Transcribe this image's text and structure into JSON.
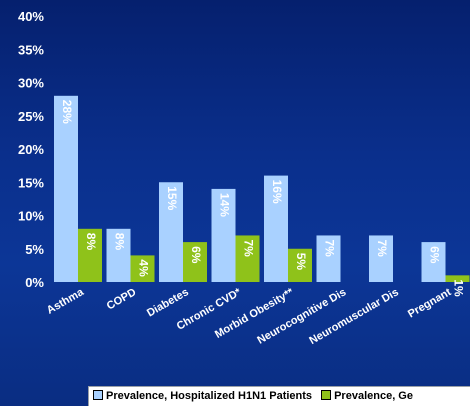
{
  "colors": {
    "series1": "#a9d1ff",
    "series2": "#8fc21a",
    "axis_text": "#ffffff",
    "category_text": "#ffffff"
  },
  "chart_data": {
    "type": "bar",
    "title": "",
    "xlabel": "",
    "ylabel": "",
    "ylim": [
      0,
      40
    ],
    "y_ticks": [
      "0%",
      "5%",
      "10%",
      "15%",
      "20%",
      "25%",
      "30%",
      "35%",
      "40%"
    ],
    "grid": false,
    "legend_position": "bottom",
    "categories": [
      "Asthma",
      "COPD",
      "Diabetes",
      "Chronic CVD*",
      "Morbid Obesity**",
      "Neurocognitive Dis",
      "Neuromuscular Dis",
      "Pregnant"
    ],
    "series": [
      {
        "name": "Prevalence, Hospitalized H1N1 Patients",
        "values": [
          28,
          8,
          15,
          14,
          16,
          7,
          7,
          6
        ],
        "labels": [
          "28%",
          "8%",
          "15%",
          "14%",
          "16%",
          "7%",
          "7%",
          "6%"
        ]
      },
      {
        "name": "Prevalence, Ge",
        "values": [
          8,
          4,
          6,
          7,
          5,
          null,
          null,
          1
        ],
        "labels": [
          "8%",
          "4%",
          "6%",
          "7%",
          "5%",
          "",
          "",
          "1%"
        ]
      }
    ]
  }
}
